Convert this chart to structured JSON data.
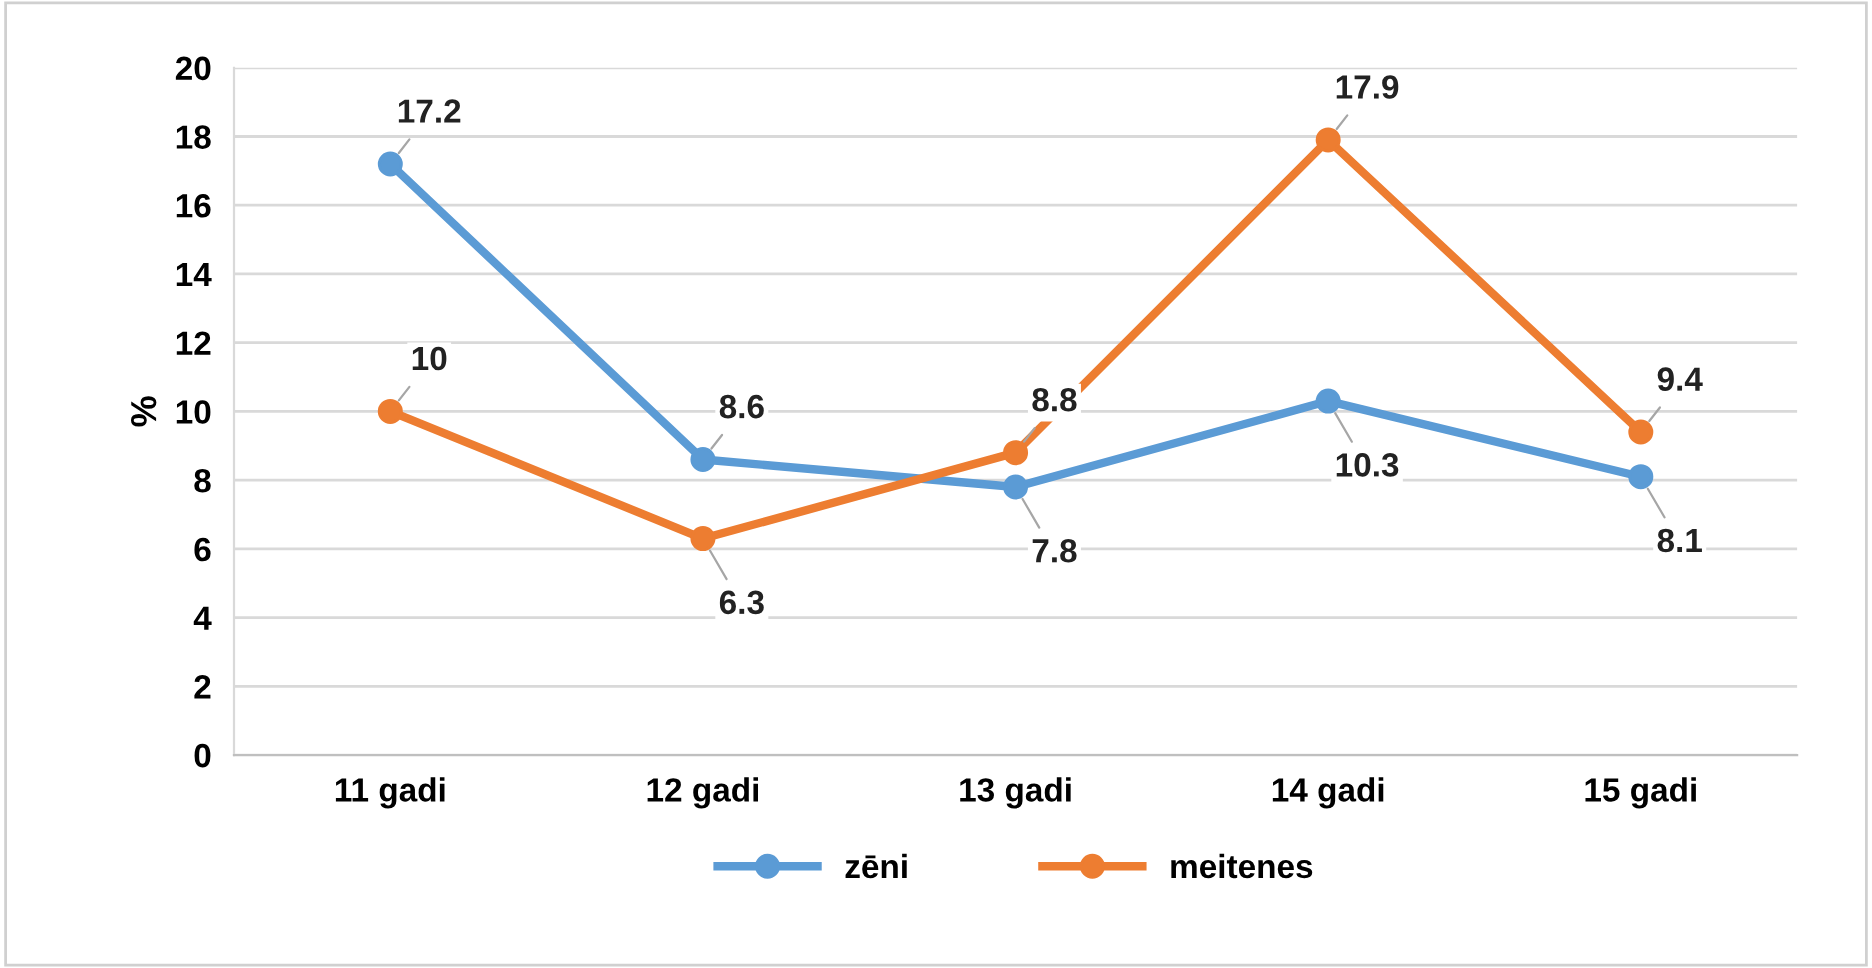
{
  "chart_data": {
    "type": "line",
    "ylabel": "%",
    "categories": [
      "11 gadi",
      "12 gadi",
      "13 gadi",
      "14 gadi",
      "15 gadi"
    ],
    "series": [
      {
        "name": "zēni",
        "color": "#5b9bd5",
        "values": [
          17.2,
          8.6,
          7.8,
          10.3,
          8.1
        ]
      },
      {
        "name": "meitenes",
        "color": "#ed7d31",
        "values": [
          10,
          6.3,
          8.8,
          17.9,
          9.4
        ]
      }
    ],
    "ylim": [
      0,
      20
    ],
    "yticks": [
      0,
      2,
      4,
      6,
      8,
      10,
      12,
      14,
      16,
      18,
      20
    ],
    "grid": "y",
    "legend": "bottom",
    "marker": "circle",
    "line_style": "solid",
    "data_labels": true
  }
}
